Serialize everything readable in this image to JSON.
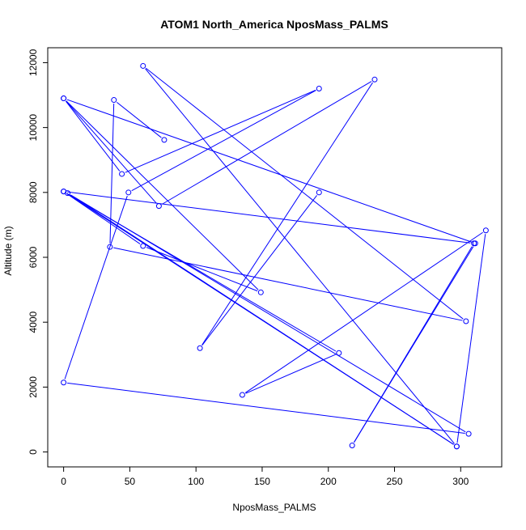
{
  "chart_data": {
    "type": "line",
    "title": "ATOM1 North_America NposMass_PALMS",
    "xlabel": "NposMass_PALMS",
    "ylabel": "Altitude (m)",
    "xlim": [
      -12,
      331
    ],
    "ylim": [
      -460,
      12460
    ],
    "x_ticks": [
      0,
      50,
      100,
      150,
      200,
      250,
      300
    ],
    "y_ticks": [
      0,
      2000,
      4000,
      6000,
      8000,
      10000,
      12000
    ],
    "grid": false,
    "series_color": "#0000ff",
    "series": [
      {
        "markers": "open-circle",
        "points": [
          {
            "x": 76,
            "y": 9620
          },
          {
            "x": 38,
            "y": 10850
          },
          {
            "x": 35,
            "y": 6320
          },
          {
            "x": 304,
            "y": 4030
          },
          {
            "x": 60,
            "y": 11900
          },
          {
            "x": 297,
            "y": 170
          },
          {
            "x": 0,
            "y": 8030
          },
          {
            "x": 208,
            "y": 3050
          },
          {
            "x": 135,
            "y": 1760
          },
          {
            "x": 319,
            "y": 6830
          },
          {
            "x": 297,
            "y": 170
          },
          {
            "x": 3,
            "y": 7980
          },
          {
            "x": 306,
            "y": 560
          },
          {
            "x": 0,
            "y": 2140
          },
          {
            "x": 49,
            "y": 8000
          },
          {
            "x": 193,
            "y": 11200
          },
          {
            "x": 44,
            "y": 8570
          },
          {
            "x": 0,
            "y": 10900
          },
          {
            "x": 149,
            "y": 4920
          },
          {
            "x": 60,
            "y": 6350
          },
          {
            "x": 0,
            "y": 8030
          },
          {
            "x": 310,
            "y": 6430
          },
          {
            "x": 218,
            "y": 200
          },
          {
            "x": 311,
            "y": 6430
          },
          {
            "x": 0,
            "y": 10900
          },
          {
            "x": 72,
            "y": 7580
          },
          {
            "x": 235,
            "y": 11480
          },
          {
            "x": 103,
            "y": 3200
          },
          {
            "x": 193,
            "y": 8000
          }
        ]
      }
    ]
  }
}
